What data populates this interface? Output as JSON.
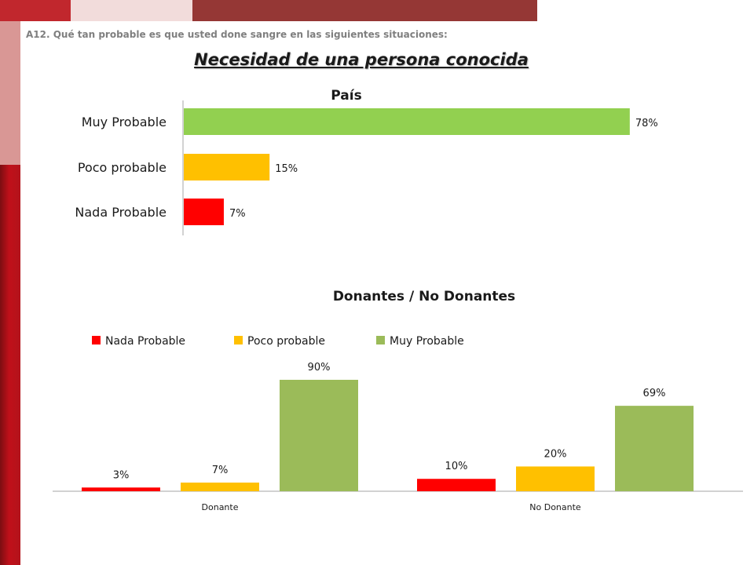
{
  "header": {
    "question": "A12. Qué tan probable es que usted done sangre en las siguientes situaciones:",
    "subtitle": "Necesidad de una persona conocida"
  },
  "colors": {
    "nada": "#ff0000",
    "poco": "#ffc000",
    "muy_top": "#92d050",
    "muy_bottom": "#9bbb59"
  },
  "chart_data": [
    {
      "type": "bar",
      "orientation": "horizontal",
      "title": "País",
      "categories": [
        "Muy Probable",
        "Poco probable",
        "Nada Probable"
      ],
      "values": [
        78,
        15,
        7
      ],
      "labels": [
        "78%",
        "15%",
        "7%"
      ],
      "colors": [
        "#92d050",
        "#ffc000",
        "#ff0000"
      ],
      "xlim": [
        0,
        100
      ],
      "grid": false
    },
    {
      "type": "bar",
      "orientation": "vertical",
      "title": "Donantes / No Donantes",
      "categories": [
        "Donante",
        "No Donante"
      ],
      "series": [
        {
          "name": "Nada Probable",
          "values": [
            3,
            10
          ],
          "labels": [
            "3%",
            "10%"
          ],
          "color": "#ff0000"
        },
        {
          "name": "Poco probable",
          "values": [
            7,
            20
          ],
          "labels": [
            "7%",
            "20%"
          ],
          "color": "#ffc000"
        },
        {
          "name": "Muy Probable",
          "values": [
            90,
            69
          ],
          "labels": [
            "90%",
            "69%"
          ],
          "color": "#9bbb59"
        }
      ],
      "ylim": [
        0,
        100
      ],
      "legend": "top",
      "grid": false
    }
  ]
}
